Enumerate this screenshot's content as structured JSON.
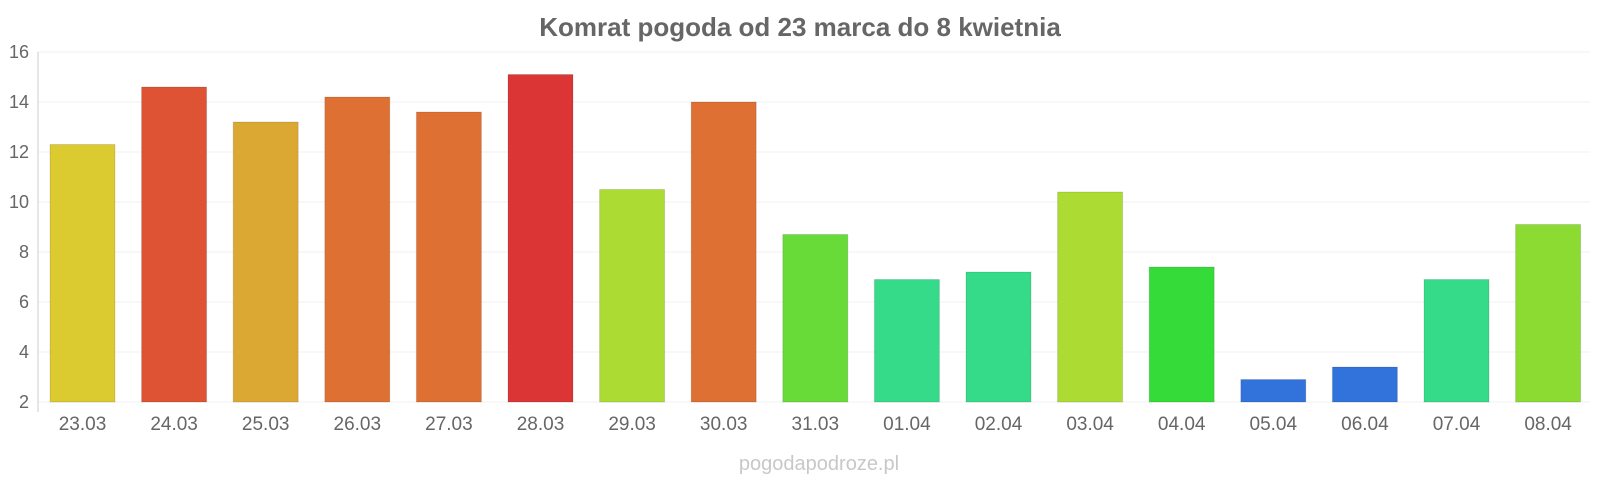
{
  "chart_data": {
    "type": "bar",
    "title": "Komrat pogoda od 23 marca do 8 kwietnia",
    "xlabel": "",
    "ylabel": "",
    "ylim": [
      2,
      16
    ],
    "yticks": [
      "2",
      "4",
      "6",
      "8",
      "10",
      "12",
      "14",
      "16"
    ],
    "grid": true,
    "categories": [
      "23.03",
      "24.03",
      "25.03",
      "26.03",
      "27.03",
      "28.03",
      "29.03",
      "30.03",
      "31.03",
      "01.04",
      "02.04",
      "03.04",
      "04.04",
      "05.04",
      "06.04",
      "07.04",
      "08.04"
    ],
    "values": [
      12.3,
      14.6,
      13.2,
      14.2,
      13.6,
      15.1,
      10.5,
      14.0,
      8.7,
      6.9,
      7.2,
      10.4,
      7.4,
      2.9,
      3.4,
      6.9,
      9.1
    ],
    "colors": [
      "#dbcb31",
      "#de5333",
      "#dba833",
      "#de7033",
      "#de7033",
      "#db3535",
      "#acdb33",
      "#de7033",
      "#68db38",
      "#35db89",
      "#35db89",
      "#acdb33",
      "#35db38",
      "#3272db",
      "#3272db",
      "#35db89",
      "#8bdb33"
    ]
  },
  "watermark": "pogodapodroze.pl"
}
